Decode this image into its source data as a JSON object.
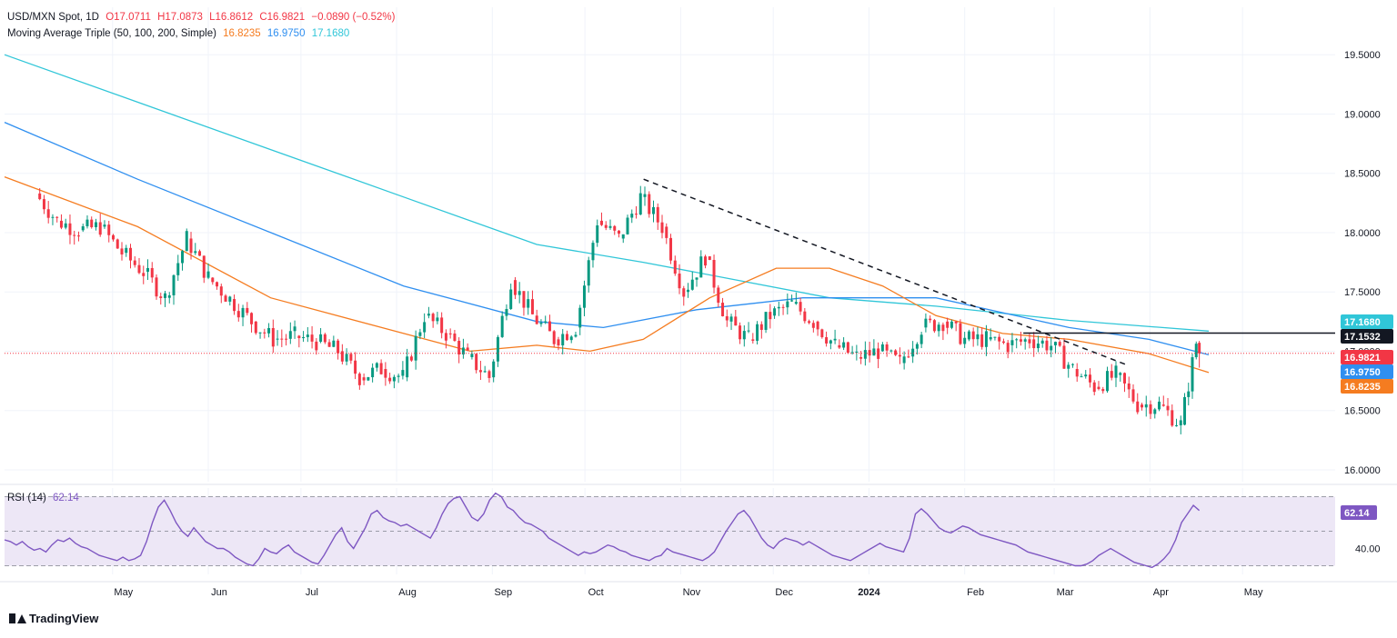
{
  "legend": {
    "symbol": "USD/MXN Spot, 1D",
    "open_label": "O17.0711",
    "high_label": "H17.0873",
    "low_label": "L16.8612",
    "close_label": "C16.9821",
    "change_label": "−0.0890 (−0.52%)",
    "ma_title": "Moving Average Triple (50, 100, 200, Simple)",
    "ma50_value": "16.8235",
    "ma100_value": "16.9750",
    "ma200_value": "17.1680",
    "rsi_title": "RSI (14)",
    "rsi_value": "62.14"
  },
  "branding": {
    "name": "TradingView"
  },
  "colors": {
    "ma50": "#f57c20",
    "ma100": "#2f8ff0",
    "ma200": "#30c6d8",
    "up": "#089981",
    "down": "#f23645",
    "rsi": "#7e57c2",
    "rsi_band": "#ede7f6"
  },
  "chart_data": [
    {
      "type": "candlestick",
      "title": "USD/MXN Spot, 1D",
      "ylim": [
        15.9,
        19.9
      ],
      "y_ticks": [
        "16.0000",
        "16.5000",
        "17.0000",
        "17.5000",
        "18.0000",
        "18.5000",
        "19.0000",
        "19.5000"
      ],
      "x_tick_labels": [
        "May",
        "Jun",
        "Jul",
        "Aug",
        "Sep",
        "Oct",
        "Nov",
        "Dec",
        "2024",
        "Feb",
        "Mar",
        "Apr",
        "May"
      ],
      "price_tags": [
        {
          "value": "17.1680",
          "series": "ma200"
        },
        {
          "value": "17.1532",
          "series": "resistance"
        },
        {
          "value": "16.9821",
          "series": "last"
        },
        {
          "value": "16.9750",
          "series": "ma100"
        },
        {
          "value": "16.8235",
          "series": "ma50"
        }
      ],
      "horizontal_resistance": 17.1532,
      "last_price": 16.9821,
      "trendline": {
        "from": [
          "2023-10-20",
          18.45
        ],
        "to": [
          "2024-03-25",
          16.88
        ],
        "style": "dashed"
      },
      "closes_weekly": [
        [
          "2023-04-06",
          18.33
        ],
        [
          "2023-04-13",
          18.1
        ],
        [
          "2023-04-20",
          18.02
        ],
        [
          "2023-04-27",
          18.05
        ],
        [
          "2023-05-04",
          17.83
        ],
        [
          "2023-05-11",
          17.67
        ],
        [
          "2023-05-18",
          17.45
        ],
        [
          "2023-05-25",
          17.95
        ],
        [
          "2023-06-01",
          17.62
        ],
        [
          "2023-06-08",
          17.44
        ],
        [
          "2023-06-15",
          17.25
        ],
        [
          "2023-06-22",
          17.1
        ],
        [
          "2023-06-29",
          17.13
        ],
        [
          "2023-07-06",
          17.08
        ],
        [
          "2023-07-13",
          17.0
        ],
        [
          "2023-07-20",
          16.78
        ],
        [
          "2023-07-27",
          16.85
        ],
        [
          "2023-08-03",
          16.78
        ],
        [
          "2023-08-10",
          17.3
        ],
        [
          "2023-08-17",
          17.15
        ],
        [
          "2023-08-24",
          16.95
        ],
        [
          "2023-08-31",
          16.78
        ],
        [
          "2023-09-07",
          17.6
        ],
        [
          "2023-09-14",
          17.3
        ],
        [
          "2023-09-21",
          17.1
        ],
        [
          "2023-09-28",
          17.2
        ],
        [
          "2023-10-05",
          18.1
        ],
        [
          "2023-10-12",
          17.95
        ],
        [
          "2023-10-19",
          18.3
        ],
        [
          "2023-10-26",
          18.05
        ],
        [
          "2023-11-02",
          17.5
        ],
        [
          "2023-11-09",
          17.8
        ],
        [
          "2023-11-16",
          17.25
        ],
        [
          "2023-11-23",
          17.1
        ],
        [
          "2023-11-30",
          17.3
        ],
        [
          "2023-12-07",
          17.4
        ],
        [
          "2023-12-14",
          17.25
        ],
        [
          "2023-12-21",
          17.05
        ],
        [
          "2023-12-28",
          16.95
        ],
        [
          "2024-01-04",
          17.0
        ],
        [
          "2024-01-11",
          16.9
        ],
        [
          "2024-01-18",
          17.2
        ],
        [
          "2024-01-25",
          17.25
        ],
        [
          "2024-02-01",
          17.1
        ],
        [
          "2024-02-08",
          17.1
        ],
        [
          "2024-02-15",
          17.05
        ],
        [
          "2024-02-22",
          17.1
        ],
        [
          "2024-02-29",
          17.05
        ],
        [
          "2024-03-07",
          16.85
        ],
        [
          "2024-03-14",
          16.7
        ],
        [
          "2024-03-21",
          16.8
        ],
        [
          "2024-03-28",
          16.55
        ],
        [
          "2024-04-04",
          16.55
        ],
        [
          "2024-04-11",
          16.38
        ],
        [
          "2024-04-16",
          17.07
        ],
        [
          "2024-04-17",
          16.98
        ]
      ],
      "ma50": [
        [
          0,
          18.47
        ],
        [
          0.1,
          18.05
        ],
        [
          0.2,
          17.45
        ],
        [
          0.3,
          17.15
        ],
        [
          0.35,
          17.0
        ],
        [
          0.4,
          17.05
        ],
        [
          0.44,
          17.0
        ],
        [
          0.48,
          17.1
        ],
        [
          0.53,
          17.45
        ],
        [
          0.58,
          17.7
        ],
        [
          0.62,
          17.7
        ],
        [
          0.66,
          17.55
        ],
        [
          0.7,
          17.3
        ],
        [
          0.75,
          17.15
        ],
        [
          0.8,
          17.1
        ],
        [
          0.86,
          16.98
        ],
        [
          0.905,
          16.82
        ]
      ],
      "ma100": [
        [
          0,
          18.93
        ],
        [
          0.1,
          18.45
        ],
        [
          0.2,
          18.0
        ],
        [
          0.3,
          17.55
        ],
        [
          0.4,
          17.25
        ],
        [
          0.45,
          17.2
        ],
        [
          0.52,
          17.35
        ],
        [
          0.6,
          17.45
        ],
        [
          0.7,
          17.45
        ],
        [
          0.8,
          17.2
        ],
        [
          0.86,
          17.1
        ],
        [
          0.905,
          16.97
        ]
      ],
      "ma200": [
        [
          0,
          19.5
        ],
        [
          0.1,
          19.1
        ],
        [
          0.2,
          18.7
        ],
        [
          0.3,
          18.3
        ],
        [
          0.4,
          17.9
        ],
        [
          0.48,
          17.75
        ],
        [
          0.55,
          17.6
        ],
        [
          0.62,
          17.45
        ],
        [
          0.7,
          17.38
        ],
        [
          0.8,
          17.26
        ],
        [
          0.905,
          17.17
        ]
      ]
    },
    {
      "type": "line",
      "title": "RSI (14)",
      "ylim": [
        25,
        75
      ],
      "y_ticks": [
        "40.00"
      ],
      "bands": [
        30,
        50,
        70
      ],
      "last_value": "62.14",
      "values": [
        45,
        44,
        42,
        44,
        41,
        39,
        40,
        38,
        42,
        45,
        44,
        46,
        43,
        41,
        40,
        38,
        36,
        35,
        34,
        33,
        35,
        33,
        34,
        36,
        44,
        55,
        64,
        68,
        62,
        55,
        50,
        47,
        52,
        48,
        44,
        42,
        40,
        40,
        38,
        35,
        33,
        31,
        30,
        34,
        40,
        38,
        37,
        40,
        42,
        38,
        36,
        34,
        32,
        31,
        36,
        42,
        48,
        52,
        44,
        40,
        46,
        52,
        60,
        62,
        58,
        56,
        55,
        53,
        54,
        52,
        50,
        48,
        46,
        52,
        60,
        66,
        69,
        70,
        64,
        58,
        56,
        60,
        68,
        72,
        70,
        64,
        62,
        58,
        55,
        54,
        52,
        50,
        46,
        44,
        42,
        40,
        38,
        36,
        38,
        37,
        38,
        40,
        42,
        41,
        39,
        38,
        36,
        35,
        34,
        33,
        35,
        36,
        40,
        38,
        37,
        36,
        35,
        34,
        33,
        35,
        38,
        44,
        50,
        55,
        60,
        62,
        58,
        52,
        46,
        42,
        40,
        44,
        46,
        45,
        44,
        42,
        44,
        42,
        40,
        38,
        36,
        35,
        34,
        33,
        35,
        37,
        39,
        41,
        43,
        41,
        40,
        39,
        38,
        46,
        60,
        63,
        60,
        56,
        52,
        50,
        49,
        51,
        53,
        52,
        50,
        48,
        47,
        46,
        45,
        44,
        43,
        42,
        40,
        38,
        37,
        36,
        35,
        34,
        33,
        32,
        31,
        30,
        30,
        31,
        33,
        36,
        38,
        40,
        38,
        36,
        34,
        32,
        31,
        30,
        29,
        31,
        34,
        38,
        45,
        55,
        60,
        65,
        62
      ]
    }
  ]
}
